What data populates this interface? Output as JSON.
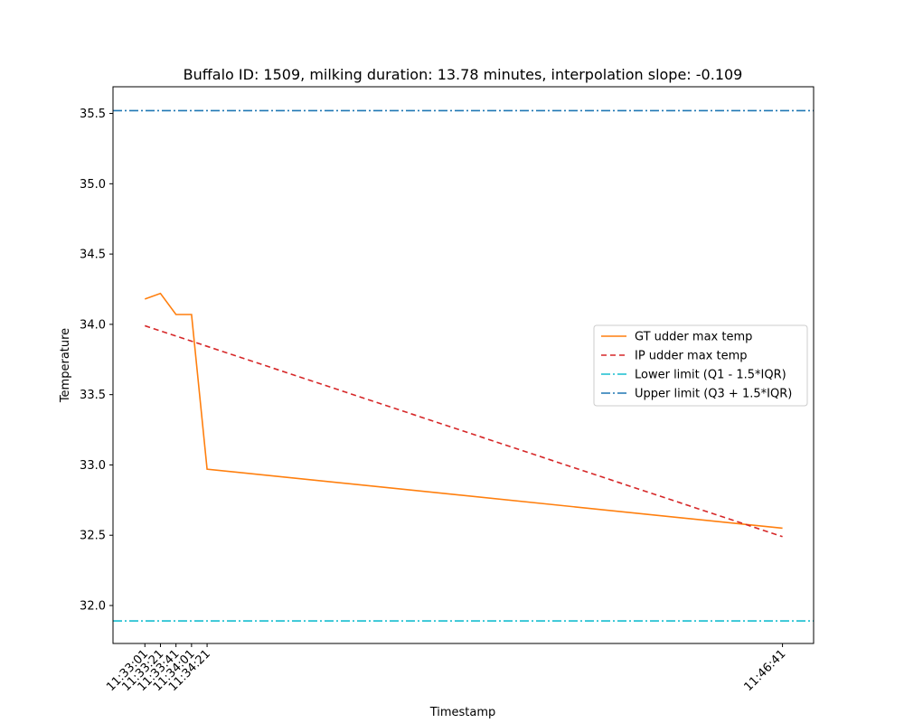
{
  "chart_data": {
    "type": "line",
    "title": "Buffalo ID: 1509, milking duration: 13.78 minutes, interpolation slope: -0.109",
    "xlabel": "Timestamp",
    "ylabel": "Temperature",
    "x_ticks": [
      "11:33:01",
      "11:33:21",
      "11:33:41",
      "11:34:01",
      "11:34:21",
      "11:46:41"
    ],
    "x_tick_seconds": [
      0,
      20,
      40,
      60,
      80,
      820
    ],
    "xlim_seconds": [
      -41,
      860
    ],
    "y_ticks": [
      32.0,
      32.5,
      33.0,
      33.5,
      34.0,
      34.5,
      35.0,
      35.5
    ],
    "ylim": [
      31.73,
      35.69
    ],
    "grid": false,
    "legend_position": "right",
    "series": [
      {
        "name": "GT udder max temp",
        "style": "solid",
        "color": "#ff7f0e",
        "x_seconds": [
          0,
          20,
          40,
          60,
          80,
          820
        ],
        "y": [
          34.18,
          34.22,
          34.07,
          34.07,
          32.97,
          32.55
        ]
      },
      {
        "name": "IP udder max temp",
        "style": "dashed",
        "color": "#d62728",
        "x_seconds": [
          0,
          820
        ],
        "y": [
          33.99,
          32.49
        ]
      },
      {
        "name": "Lower limit (Q1 - 1.5*IQR)",
        "style": "dashdot",
        "color": "#17becf",
        "hline": 31.89
      },
      {
        "name": "Upper limit (Q3 + 1.5*IQR)",
        "style": "dashdot",
        "color": "#1f77b4",
        "hline": 35.52
      }
    ]
  }
}
